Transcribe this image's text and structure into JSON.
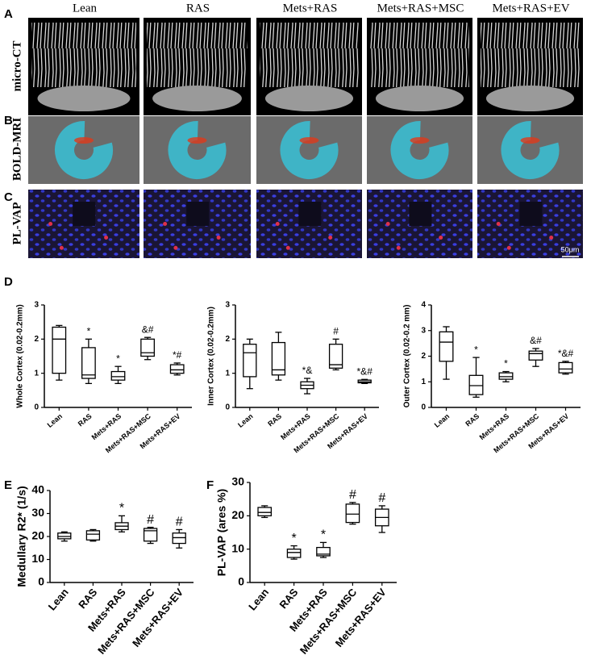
{
  "figure": {
    "panel_labels": [
      "A",
      "B",
      "C",
      "D",
      "E",
      "F"
    ],
    "columns": [
      "Lean",
      "RAS",
      "Mets+RAS",
      "Mets+RAS+MSC",
      "Mets+RAS+EV"
    ],
    "row_labels": [
      "micro-CT",
      "BOLD-MRI",
      "PL-VAP"
    ],
    "scale_bar": "50μm"
  },
  "chart_data": [
    {
      "type": "box",
      "y_label": "Whole Cortex (0.02-0.2mm)",
      "color": "#000000",
      "categories": [
        "Lean",
        "RAS",
        "Mets+RAS",
        "Mets+RAS+MSC",
        "Mets+RAS+EV"
      ],
      "boxes": [
        {
          "min": 0.8,
          "q1": 1.0,
          "median": 2.0,
          "q3": 2.35,
          "max": 2.4
        },
        {
          "min": 0.7,
          "q1": 0.85,
          "median": 0.95,
          "q3": 1.75,
          "max": 2.0
        },
        {
          "min": 0.7,
          "q1": 0.8,
          "median": 0.9,
          "q3": 1.05,
          "max": 1.2
        },
        {
          "min": 1.4,
          "q1": 1.5,
          "median": 1.6,
          "q3": 2.0,
          "max": 2.05
        },
        {
          "min": 0.95,
          "q1": 1.0,
          "median": 1.1,
          "q3": 1.25,
          "max": 1.3
        }
      ],
      "annotations": [
        null,
        "*",
        "*",
        "&#",
        "*#"
      ],
      "ylim": [
        0,
        3
      ],
      "yticks": [
        0,
        1,
        2,
        3
      ]
    },
    {
      "type": "box",
      "y_label": "Inner Cortex (0.02-0.2mm)",
      "color": "#000000",
      "categories": [
        "Lean",
        "RAS",
        "Mets+RAS",
        "Mets+RAS+MSC",
        "Mets+RAS+EV"
      ],
      "boxes": [
        {
          "min": 0.55,
          "q1": 0.9,
          "median": 1.6,
          "q3": 1.85,
          "max": 2.0
        },
        {
          "min": 0.8,
          "q1": 0.95,
          "median": 1.1,
          "q3": 1.9,
          "max": 2.2
        },
        {
          "min": 0.4,
          "q1": 0.55,
          "median": 0.65,
          "q3": 0.75,
          "max": 0.85
        },
        {
          "min": 1.1,
          "q1": 1.15,
          "median": 1.25,
          "q3": 1.85,
          "max": 2.0
        },
        {
          "min": 0.7,
          "q1": 0.72,
          "median": 0.75,
          "q3": 0.8,
          "max": 0.82
        }
      ],
      "annotations": [
        null,
        null,
        "*&",
        "#",
        "*&#"
      ],
      "ylim": [
        0,
        3
      ],
      "yticks": [
        0,
        1,
        2,
        3
      ]
    },
    {
      "type": "box",
      "y_label": "Outer Cortex (0.02-0.2 mm)",
      "color": "#000000",
      "categories": [
        "Lean",
        "RAS",
        "Mets+RAS",
        "Mets+RAS+MSC",
        "Mets+RAS+EV"
      ],
      "boxes": [
        {
          "min": 1.1,
          "q1": 1.8,
          "median": 2.55,
          "q3": 2.95,
          "max": 3.15
        },
        {
          "min": 0.4,
          "q1": 0.5,
          "median": 0.85,
          "q3": 1.25,
          "max": 1.95
        },
        {
          "min": 1.0,
          "q1": 1.1,
          "median": 1.2,
          "q3": 1.35,
          "max": 1.4
        },
        {
          "min": 1.6,
          "q1": 1.85,
          "median": 2.1,
          "q3": 2.2,
          "max": 2.3
        },
        {
          "min": 1.3,
          "q1": 1.35,
          "median": 1.5,
          "q3": 1.75,
          "max": 1.8
        }
      ],
      "annotations": [
        null,
        "*",
        "*",
        "&#",
        "*&#"
      ],
      "ylim": [
        0,
        4
      ],
      "yticks": [
        0,
        1,
        2,
        3,
        4
      ]
    },
    {
      "type": "box",
      "y_label": "Medullary R2* (1/s)",
      "color": "#000000",
      "categories": [
        "Lean",
        "RAS",
        "Mets+RAS",
        "Mets+RAS+MSC",
        "Mets+RAS+EV"
      ],
      "boxes": [
        {
          "min": 18,
          "q1": 19,
          "median": 20,
          "q3": 21.5,
          "max": 22
        },
        {
          "min": 18,
          "q1": 18.5,
          "median": 21,
          "q3": 22.5,
          "max": 23
        },
        {
          "min": 22,
          "q1": 23,
          "median": 24.5,
          "q3": 26,
          "max": 29
        },
        {
          "min": 17,
          "q1": 18,
          "median": 22.5,
          "q3": 23.5,
          "max": 24
        },
        {
          "min": 15,
          "q1": 17,
          "median": 19.5,
          "q3": 21.5,
          "max": 23
        }
      ],
      "annotations": [
        null,
        null,
        "*",
        "#",
        "#"
      ],
      "ylim": [
        0,
        40
      ],
      "yticks": [
        0,
        10,
        20,
        30,
        40
      ]
    },
    {
      "type": "box",
      "y_label": "PL-VAP (ares %)",
      "color": "#000000",
      "categories": [
        "Lean",
        "RAS",
        "Mets+RAS",
        "Mets+RAS+MSC",
        "Mets+RAS+EV"
      ],
      "boxes": [
        {
          "min": 19.5,
          "q1": 20,
          "median": 21,
          "q3": 22.5,
          "max": 23
        },
        {
          "min": 7,
          "q1": 7.5,
          "median": 9,
          "q3": 10,
          "max": 11
        },
        {
          "min": 7.5,
          "q1": 8,
          "median": 8.5,
          "q3": 10.5,
          "max": 12
        },
        {
          "min": 17.5,
          "q1": 18,
          "median": 20.5,
          "q3": 23.5,
          "max": 24
        },
        {
          "min": 15,
          "q1": 17,
          "median": 19.5,
          "q3": 22,
          "max": 23
        }
      ],
      "annotations": [
        null,
        "*",
        "*",
        "#",
        "#"
      ],
      "ylim": [
        0,
        30
      ],
      "yticks": [
        0,
        10,
        20,
        30
      ]
    }
  ]
}
